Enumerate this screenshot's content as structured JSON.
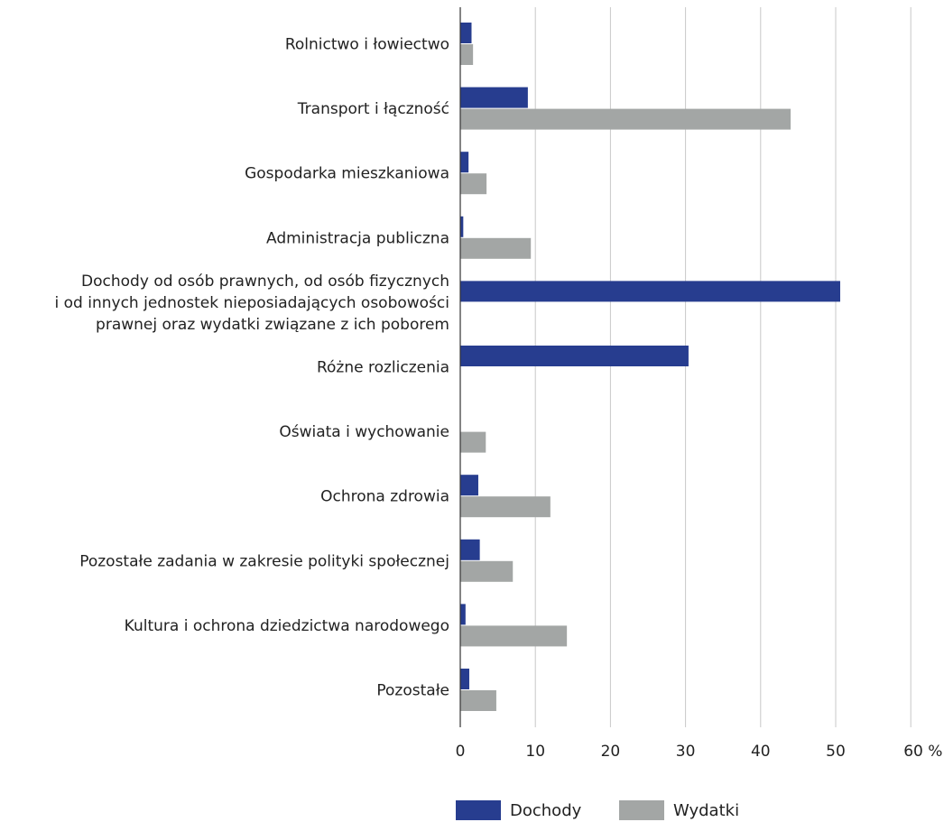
{
  "chart_data": {
    "type": "bar",
    "orientation": "horizontal",
    "categories": [
      [
        "Rolnictwo i łowiectwo"
      ],
      [
        "Transport i łączność"
      ],
      [
        "Gospodarka mieszkaniowa"
      ],
      [
        "Administracja publiczna"
      ],
      [
        "Dochody od osób prawnych, od osób fizycznych",
        "i od innych jednostek nieposiadających osobowości",
        "prawnej oraz wydatki związane z ich poborem"
      ],
      [
        "Różne rozliczenia"
      ],
      [
        "Oświata i wychowanie"
      ],
      [
        "Ochrona zdrowia"
      ],
      [
        "Pozostałe zadania w zakresie polityki społecznej"
      ],
      [
        "Kultura i ochrona dziedzictwa narodowego"
      ],
      [
        "Pozostałe"
      ]
    ],
    "series": [
      {
        "name": "Dochody",
        "color": "#273d8f",
        "values": [
          1.5,
          9.0,
          1.1,
          0.4,
          50.6,
          30.4,
          0.0,
          2.4,
          2.6,
          0.7,
          1.2
        ]
      },
      {
        "name": "Wydatki",
        "color": "#a3a6a5",
        "values": [
          1.7,
          44.0,
          3.5,
          9.4,
          0.0,
          0.0,
          3.4,
          12.0,
          7.0,
          14.2,
          4.8
        ]
      }
    ],
    "xlim": [
      0,
      60
    ],
    "ticks": [
      "0",
      "10",
      "20",
      "30",
      "40",
      "50",
      "60 %"
    ],
    "tick_values": [
      0,
      10,
      20,
      30,
      40,
      50,
      60
    ],
    "grid": true,
    "legend_position": "bottom-center"
  }
}
